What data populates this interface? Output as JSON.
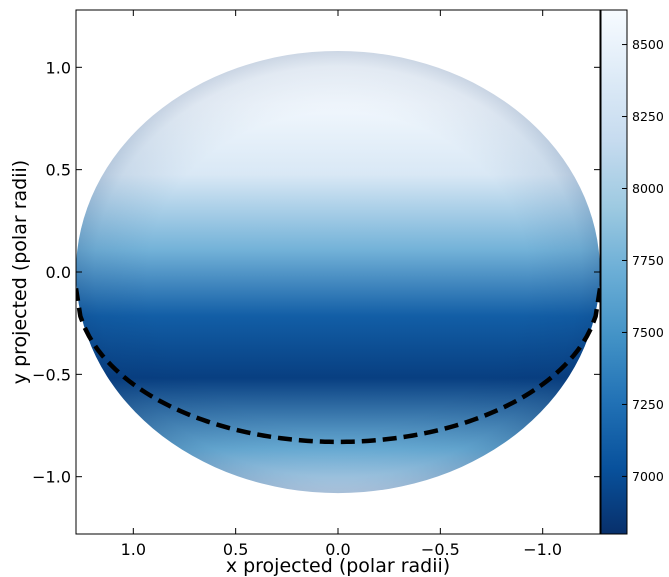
{
  "chart_data": {
    "type": "heatmap",
    "title": "",
    "xlabel": "x projected (polar radii)",
    "ylabel": "y projected (polar radii)",
    "xlim": [
      1.28,
      -1.28
    ],
    "ylim": [
      -1.28,
      1.28
    ],
    "x_axis_inverted": true,
    "xticks": [
      1.0,
      0.5,
      0.0,
      -0.5,
      -1.0
    ],
    "xtick_labels": [
      "1.0",
      "0.5",
      "0.0",
      "−0.5",
      "−1.0"
    ],
    "yticks": [
      -1.0,
      -0.5,
      0.0,
      0.5,
      1.0
    ],
    "ytick_labels": [
      "−1.0",
      "−0.5",
      "0.0",
      "0.5",
      "1.0"
    ],
    "grid": false,
    "surface": {
      "shape": "ellipse",
      "semi_axis_x": 1.28,
      "semi_axis_y": 1.08,
      "colormap": "Blues_r",
      "value_at_top": 8600,
      "value_at_bottom": 6900
    },
    "annotation": {
      "type": "dashed-curve",
      "label": "equator",
      "y_at_center": -0.83,
      "y_at_edge": -0.08,
      "color": "#000000"
    },
    "colorbar": {
      "range": [
        6800,
        8620
      ],
      "ticks": [
        7000,
        7250,
        7500,
        7750,
        8000,
        8250,
        8500
      ],
      "tick_labels": [
        "7000",
        "7250",
        "7500",
        "7750",
        "8000",
        "8250",
        "8500"
      ],
      "colors": [
        "#08306b",
        "#08519c",
        "#2171b5",
        "#4292c6",
        "#6baed6",
        "#9ecae1",
        "#c6dbef",
        "#deebf7",
        "#f7fbff"
      ]
    }
  }
}
